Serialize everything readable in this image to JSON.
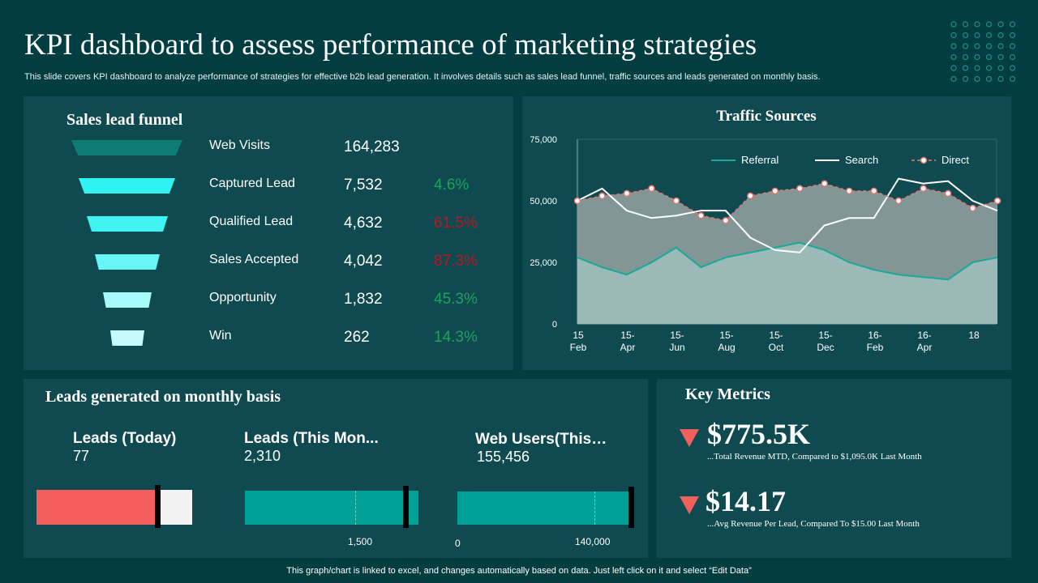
{
  "header": {
    "title": "KPI dashboard to assess performance of marketing strategies",
    "subtitle": "This slide covers KPI dashboard to analyze performance of strategies for effective  b2b lead generation. It involves details such as sales lead funnel, traffic sources and leads generated on monthly basis."
  },
  "funnel": {
    "title": "Sales lead funnel",
    "stages": [
      {
        "label": "Web Visits",
        "value": "164,283",
        "pct": "",
        "pct_color": "#1aa35b",
        "bar_color": "#0e7c74"
      },
      {
        "label": "Captured Lead",
        "value": "7,532",
        "pct": "4.6%",
        "pct_color": "#1aa35b",
        "bar_color": "#2ff3f0"
      },
      {
        "label": "Qualified Lead",
        "value": "4,632",
        "pct": "61.5%",
        "pct_color": "#c4121b",
        "bar_color": "#3ff3f2"
      },
      {
        "label": "Sales Accepted",
        "value": "4,042",
        "pct": "87.3%",
        "pct_color": "#c4121b",
        "bar_color": "#66f6f6"
      },
      {
        "label": "Opportunity",
        "value": "1,832",
        "pct": "45.3%",
        "pct_color": "#1aa35b",
        "bar_color": "#a6fafa"
      },
      {
        "label": "Win",
        "value": "262",
        "pct": "14.3%",
        "pct_color": "#1aa35b",
        "bar_color": "#c8fcfc"
      }
    ]
  },
  "chart_data": {
    "type": "area",
    "title": "Traffic Sources",
    "xlabel": "",
    "ylabel": "",
    "ylim": [
      0,
      75000
    ],
    "yticks": [
      "0",
      "25,000",
      "50,000",
      "75,000"
    ],
    "x_tick_labels": [
      [
        "15",
        "Feb"
      ],
      [
        "15-",
        "Apr"
      ],
      [
        "15-",
        "Jun"
      ],
      [
        "15-",
        "Aug"
      ],
      [
        "15-",
        "Oct"
      ],
      [
        "15-",
        "Dec"
      ],
      [
        "16-",
        "Feb"
      ],
      [
        "16-",
        "Apr"
      ],
      [
        "18",
        ""
      ]
    ],
    "legend_position": "top-right",
    "grid": false,
    "series": [
      {
        "name": "Referral",
        "color": "#1aa89a",
        "values": [
          27000,
          23000,
          20000,
          25000,
          31000,
          23000,
          27000,
          29000,
          31000,
          33000,
          30000,
          25000,
          22000,
          20000,
          19000,
          18000,
          25000,
          27000
        ]
      },
      {
        "name": "Search",
        "color": "#ffffff",
        "values": [
          50000,
          55000,
          46000,
          43000,
          44000,
          46000,
          46000,
          35000,
          30000,
          29000,
          40000,
          43000,
          43000,
          59000,
          57000,
          58000,
          50000,
          46000
        ]
      },
      {
        "name": "Direct",
        "color": "#e57373",
        "values": [
          50000,
          52000,
          53000,
          55000,
          50000,
          44000,
          42000,
          52000,
          54000,
          55000,
          57000,
          54000,
          54000,
          50000,
          55000,
          53000,
          47000,
          50000
        ]
      }
    ]
  },
  "leads": {
    "title": "Leads generated on monthly basis",
    "items": [
      {
        "label": "Leads (Today)",
        "value": "77",
        "fill_fraction": 0.76,
        "target_fraction": 0.78,
        "fill_color": "#f25f5c",
        "track_color": "#f2f2f2",
        "ticks": []
      },
      {
        "label": "Leads (This Mon...",
        "value": "2,310",
        "fill_fraction": 0.92,
        "target_fraction": 0.93,
        "fill_color": "#00a096",
        "track_color": "#00a096",
        "ticks": [
          "1,500"
        ]
      },
      {
        "label": "Web Users(This…",
        "value": "155,456",
        "fill_fraction": 1.0,
        "target_fraction": 0.99,
        "fill_color": "#00a096",
        "track_color": "#00a096",
        "ticks": [
          "0",
          "140,000"
        ]
      }
    ]
  },
  "metrics": {
    "title": "Key Metrics",
    "items": [
      {
        "value": "$775.5K",
        "desc": "...Total Revenue MTD, Compared to $1,095.0K Last Month",
        "trend": "down"
      },
      {
        "value": "$14.17",
        "desc": "...Avg Revenue Per Lead, Compared To $15.00 Last Month",
        "trend": "down"
      }
    ]
  },
  "footer": {
    "note": "This graph/chart is linked to excel,  and changes automatically based on data. Just left click on it and select “Edit Data”"
  }
}
